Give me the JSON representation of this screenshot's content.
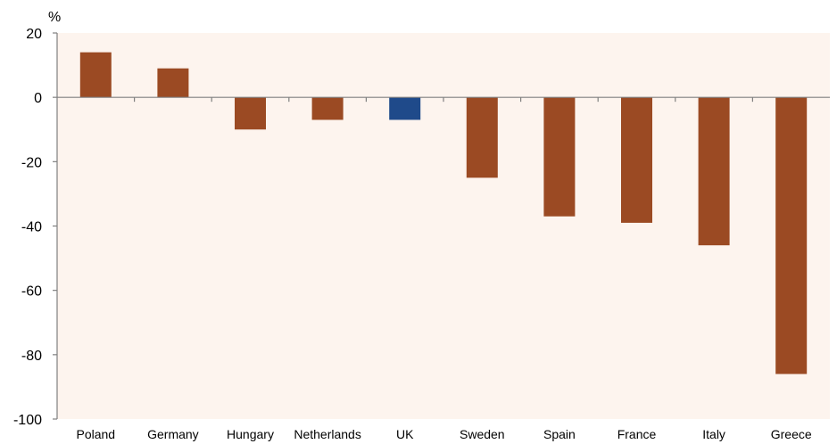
{
  "chart_data": {
    "type": "bar",
    "unit_label": "%",
    "categories": [
      "Poland",
      "Germany",
      "Hungary",
      "Netherlands",
      "UK",
      "Sweden",
      "Spain",
      "France",
      "Italy",
      "Greece"
    ],
    "values": [
      14,
      9,
      -10,
      -7,
      -7,
      -25,
      -37,
      -39,
      -46,
      -86
    ],
    "highlight_category": "UK",
    "ylim": [
      -100,
      20
    ],
    "yticks": [
      20,
      0,
      -20,
      -40,
      -60,
      -80,
      -100
    ],
    "grid": false,
    "legend": "none",
    "colors": {
      "bar": "#9b4a23",
      "highlight": "#1f4a8a",
      "plot_background": "#fdf4ee",
      "axis": "#808080"
    }
  }
}
